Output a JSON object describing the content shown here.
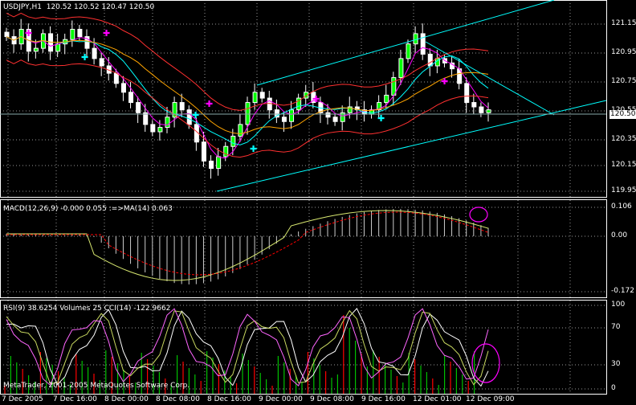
{
  "header": {
    "symbol_tf": "USDJPY,H1",
    "ohlc": "120.52 120.52 120.47 120.50"
  },
  "current_price": "120.50",
  "price_axis": [
    "121.15",
    "120.95",
    "120.75",
    "120.55",
    "120.35",
    "120.15",
    "119.95"
  ],
  "macd": {
    "title": "MACD(12,26,9) -0.000 0.055 :=>MA(14) 0.063",
    "axis": [
      "0.106",
      "0.00",
      "-0.172"
    ]
  },
  "rsi": {
    "title": "RSI(9) 38.6254  Volumes 25  CCI(14) -122.9662",
    "axis": [
      "100",
      "70",
      "30",
      "0"
    ]
  },
  "copyright": "MetaTrader,   2001-2005 MetaQuotes Software Corp.",
  "time_axis": [
    "7 Dec 2005",
    "7 Dec 16:00",
    "8 Dec 00:00",
    "8 Dec 08:00",
    "8 Dec 16:00",
    "9 Dec 00:00",
    "9 Dec 08:00",
    "9 Dec 16:00",
    "12 Dec 01:00",
    "12 Dec 09:00"
  ],
  "colors": {
    "background": "#000000",
    "grid": "#ffffff",
    "candle": "#ffffff",
    "bull_body": "#00ff00",
    "ma_cyan": "#00ffff",
    "ma_orange": "#ffa500",
    "band_red": "#ff3030",
    "ma_magenta": "#ff00ff",
    "signal": "#ff0000",
    "channel": "#00ffff",
    "vol_green": "#00c000",
    "vol_red": "#ff0000"
  },
  "chart_data": {
    "type": "candlestick",
    "symbol": "USDJPY,H1",
    "close": [
      121.0,
      120.95,
      121.05,
      120.9,
      120.92,
      121.02,
      120.9,
      120.95,
      120.98,
      121.05,
      121.0,
      120.92,
      120.85,
      120.8,
      120.75,
      120.68,
      120.62,
      120.55,
      120.48,
      120.4,
      120.35,
      120.38,
      120.45,
      120.55,
      120.5,
      120.4,
      120.28,
      120.15,
      120.1,
      120.18,
      120.25,
      120.32,
      120.4,
      120.55,
      120.62,
      120.58,
      120.5,
      120.45,
      120.42,
      120.5,
      120.58,
      120.62,
      120.55,
      120.48,
      120.45,
      120.42,
      120.48,
      120.52,
      120.5,
      120.47,
      120.5,
      120.55,
      120.6,
      120.72,
      120.85,
      120.95,
      121.02,
      120.88,
      120.8,
      120.85,
      120.82,
      120.78,
      120.68,
      120.55,
      120.52,
      120.48,
      120.5
    ],
    "ylim": [
      119.9,
      121.25
    ]
  }
}
